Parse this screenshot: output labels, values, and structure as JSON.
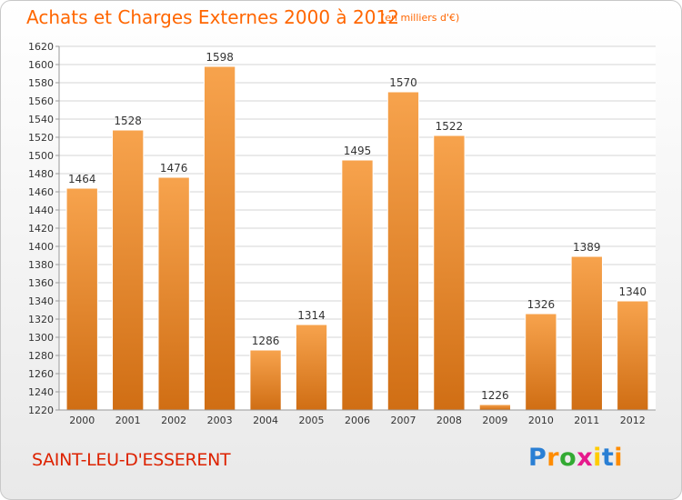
{
  "title": "Achats et Charges Externes 2000 à 2012",
  "subtitle": "(en milliers d'€)",
  "commune": "SAINT-LEU-D'ESSERENT",
  "logo": {
    "letters": [
      "P",
      "r",
      "o",
      "x",
      "i",
      "t",
      "i"
    ],
    "colors": [
      "#2a7fd4",
      "#ff8c00",
      "#33aa33",
      "#e6198c",
      "#ffcc00",
      "#2a7fd4",
      "#ff8c00"
    ]
  },
  "colors": {
    "bar_top": "#f7a34d",
    "bar_bottom": "#d06e14",
    "accent": "#ff6600",
    "commune": "#dd2200"
  },
  "chart_data": {
    "type": "bar",
    "categories": [
      "2000",
      "2001",
      "2002",
      "2003",
      "2004",
      "2005",
      "2006",
      "2007",
      "2008",
      "2009",
      "2010",
      "2011",
      "2012"
    ],
    "values": [
      1464,
      1528,
      1476,
      1598,
      1286,
      1314,
      1495,
      1570,
      1522,
      1226,
      1326,
      1389,
      1340
    ],
    "title": "Achats et Charges Externes 2000 à 2012",
    "ylim": [
      1220,
      1620
    ],
    "yticks": [
      1220,
      1240,
      1260,
      1280,
      1300,
      1320,
      1340,
      1360,
      1380,
      1400,
      1420,
      1440,
      1460,
      1480,
      1500,
      1520,
      1540,
      1560,
      1580,
      1600,
      1620
    ],
    "grid": true,
    "data_labels": true
  }
}
